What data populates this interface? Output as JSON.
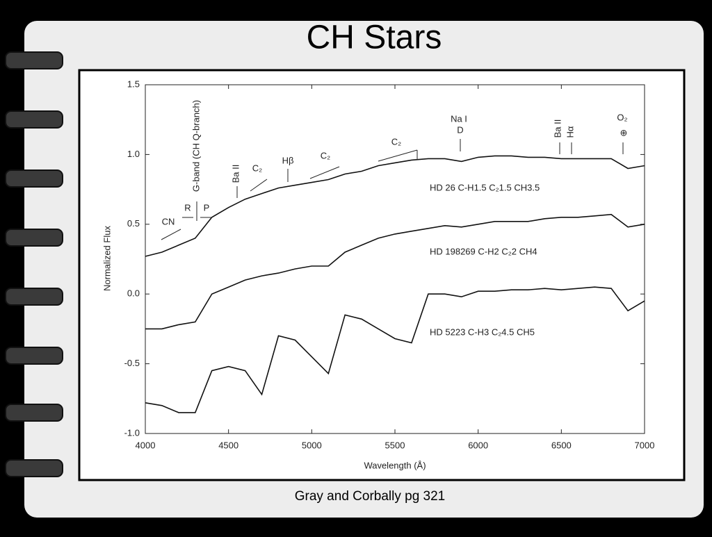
{
  "title": "CH Stars",
  "caption": "Gray and Corbally pg 321",
  "chart_data": {
    "type": "line",
    "xlabel": "Wavelength (Å)",
    "ylabel": "Normalized Flux",
    "x": [
      4000,
      4100,
      4200,
      4300,
      4400,
      4500,
      4600,
      4700,
      4800,
      4900,
      5000,
      5100,
      5200,
      5300,
      5400,
      5500,
      5600,
      5700,
      5800,
      5900,
      6000,
      6100,
      6200,
      6300,
      6400,
      6500,
      6600,
      6700,
      6800,
      6900,
      7000
    ],
    "series": [
      {
        "name": "HD 26  C-H1.5 C₂1.5 CH3.5",
        "color": "#111111",
        "values": [
          0.27,
          0.3,
          0.35,
          0.4,
          0.55,
          0.62,
          0.68,
          0.72,
          0.76,
          0.78,
          0.8,
          0.82,
          0.86,
          0.88,
          0.92,
          0.94,
          0.96,
          0.97,
          0.97,
          0.95,
          0.98,
          0.99,
          0.99,
          0.98,
          0.98,
          0.97,
          0.97,
          0.97,
          0.97,
          0.9,
          0.92
        ]
      },
      {
        "name": "HD 198269  C-H2 C₂2 CH4",
        "color": "#111111",
        "values": [
          -0.25,
          -0.25,
          -0.22,
          -0.2,
          0.0,
          0.05,
          0.1,
          0.13,
          0.15,
          0.18,
          0.2,
          0.2,
          0.3,
          0.35,
          0.4,
          0.43,
          0.45,
          0.47,
          0.49,
          0.48,
          0.5,
          0.52,
          0.52,
          0.52,
          0.54,
          0.55,
          0.55,
          0.56,
          0.57,
          0.48,
          0.5
        ]
      },
      {
        "name": "HD 5223  C-H3 C₂4.5 CH5",
        "color": "#111111",
        "values": [
          -0.78,
          -0.8,
          -0.85,
          -0.85,
          -0.55,
          -0.52,
          -0.55,
          -0.72,
          -0.3,
          -0.33,
          -0.45,
          -0.57,
          -0.15,
          -0.18,
          -0.25,
          -0.32,
          -0.35,
          0.0,
          0.0,
          -0.02,
          0.02,
          0.02,
          0.03,
          0.03,
          0.04,
          0.03,
          0.04,
          0.05,
          0.04,
          -0.12,
          -0.05
        ]
      }
    ],
    "xlim": [
      4000,
      7000
    ],
    "xticks": [
      4000,
      4500,
      5000,
      5500,
      6000,
      6500,
      7000
    ],
    "ylim": [
      -1.0,
      1.5
    ],
    "yticks": [
      {
        "value": -1.0,
        "label": "-1.0"
      },
      {
        "value": -0.5,
        "label": "-0.5"
      },
      {
        "value": 0.0,
        "label": "0.0"
      },
      {
        "value": 0.5,
        "label": "0.5"
      },
      {
        "value": 1.0,
        "label": "1.0"
      },
      {
        "value": 1.5,
        "label": "1.5"
      }
    ],
    "annotations": [
      "CN",
      "R",
      "P",
      "G-band (CH Q-branch)",
      "Ba II",
      "C₂",
      "Hβ",
      "C₂",
      "C₂",
      "Na I",
      "D",
      "Ba II",
      "Hα",
      "O₂",
      "⊕"
    ]
  }
}
